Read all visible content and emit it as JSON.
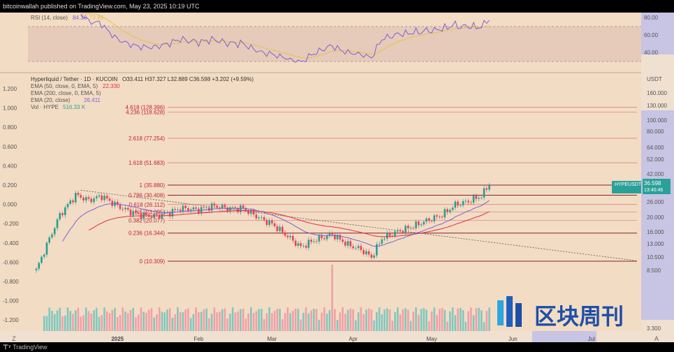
{
  "header": {
    "publish_text": "bitcoinwallah published on TradingView.com, May 23, 2025 10:19 UTC"
  },
  "footer": {
    "brand": "TradingView"
  },
  "rsi": {
    "title": "RSI (14, close)",
    "value": "84.36",
    "ma_value": "73.80",
    "ticks": [
      "80.00",
      "60.00",
      "40.00"
    ],
    "colors": {
      "rsi": "#7b5fd6",
      "ma": "#e8c04a",
      "band": "#d9b9b0"
    }
  },
  "main": {
    "title": "Hyperliquid / Tether · 1D · KUCOIN",
    "ohlc": "O33.411 H37.327 L32.889 C36.598 +3.202 (+9.59%)",
    "indicators": [
      {
        "label": "EMA (50, close, 0, EMA, 5)",
        "value": "22.330",
        "color": "#e03040"
      },
      {
        "label": "EMA (200, close, 0, EMA, 5)",
        "value": "",
        "color": "#e03040"
      },
      {
        "label": "EMA (20, close)",
        "value": "26.411",
        "color": "#7b5fd6"
      },
      {
        "label": "Vol · HYPE",
        "value": "516.33 K",
        "color": "#2aa198"
      }
    ],
    "currency": "USDT",
    "price_tag": {
      "symbol": "HYPEUSDT",
      "price": "36.598",
      "countdown": "13:40:46"
    }
  },
  "fib_levels": [
    {
      "label": "4.618 (128.396)",
      "price": 128.396
    },
    {
      "label": "4.236 (118.628)",
      "price": 118.628
    },
    {
      "label": "2.618 (77.254)",
      "price": 77.254
    },
    {
      "label": "1.618 (51.683)",
      "price": 51.683
    },
    {
      "label": "1 (35.880)",
      "price": 35.88
    },
    {
      "label": "0.786 (30.408)",
      "price": 30.408
    },
    {
      "label": "0.618 (26.112)",
      "price": 26.112
    },
    {
      "label": "0.5 (23.095)",
      "price": 23.095
    },
    {
      "label": "0.382 (20.077)",
      "price": 20.077
    },
    {
      "label": "0.236 (16.344)",
      "price": 16.344
    },
    {
      "label": "0 (10.309)",
      "price": 10.309
    }
  ],
  "left_axis_ticks": [
    "1.200",
    "1.000",
    "0.800",
    "0.600",
    "0.400",
    "0.200",
    "0.000",
    "-0.200",
    "-0.400",
    "-0.600",
    "-0.800",
    "-1.000",
    "-1.200"
  ],
  "right_axis_ticks": [
    "USDT",
    "160.000",
    "130.000",
    "100.000",
    "80.000",
    "64.000",
    "52.000",
    "42.000",
    "26.000",
    "20.000",
    "16.000",
    "13.000",
    "10.500",
    "8.500",
    "3.300"
  ],
  "x_ticks": [
    "2025",
    "Feb",
    "Mar",
    "Apr",
    "May",
    "Jun",
    "Jul"
  ],
  "watermark": "区块周刊",
  "chart_data": {
    "type": "candlestick",
    "title": "Hyperliquid / Tether · 1D · KUCOIN",
    "symbol": "HYPEUSDT",
    "scale": "log",
    "last": {
      "open": 33.411,
      "high": 37.327,
      "low": 32.889,
      "close": 36.598,
      "change": 3.202,
      "change_pct": 9.59
    },
    "candles": [
      {
        "t": "2024-12-01",
        "c": 8.9
      },
      {
        "t": "2024-12-05",
        "c": 13.5
      },
      {
        "t": "2024-12-10",
        "c": 22.0
      },
      {
        "t": "2024-12-16",
        "c": 30.5
      },
      {
        "t": "2024-12-21",
        "c": 28.0
      },
      {
        "t": "2024-12-26",
        "c": 30.0
      },
      {
        "t": "2025-01-01",
        "c": 25.5
      },
      {
        "t": "2025-01-05",
        "c": 23.5
      },
      {
        "t": "2025-01-10",
        "c": 22.0
      },
      {
        "t": "2025-01-15",
        "c": 21.5
      },
      {
        "t": "2025-01-20",
        "c": 22.5
      },
      {
        "t": "2025-01-25",
        "c": 24.5
      },
      {
        "t": "2025-02-01",
        "c": 24.0
      },
      {
        "t": "2025-02-07",
        "c": 25.5
      },
      {
        "t": "2025-02-12",
        "c": 24.5
      },
      {
        "t": "2025-02-18",
        "c": 24.5
      },
      {
        "t": "2025-02-24",
        "c": 21.0
      },
      {
        "t": "2025-03-01",
        "c": 19.0
      },
      {
        "t": "2025-03-07",
        "c": 15.5
      },
      {
        "t": "2025-03-12",
        "c": 13.0
      },
      {
        "t": "2025-03-17",
        "c": 14.5
      },
      {
        "t": "2025-03-24",
        "c": 16.0
      },
      {
        "t": "2025-03-30",
        "c": 13.5
      },
      {
        "t": "2025-04-04",
        "c": 12.5
      },
      {
        "t": "2025-04-08",
        "c": 11.0
      },
      {
        "t": "2025-04-12",
        "c": 15.0
      },
      {
        "t": "2025-04-17",
        "c": 16.5
      },
      {
        "t": "2025-04-23",
        "c": 18.0
      },
      {
        "t": "2025-04-29",
        "c": 20.0
      },
      {
        "t": "2025-05-05",
        "c": 22.0
      },
      {
        "t": "2025-05-10",
        "c": 26.0
      },
      {
        "t": "2025-05-15",
        "c": 27.5
      },
      {
        "t": "2025-05-20",
        "c": 30.0
      },
      {
        "t": "2025-05-23",
        "c": 36.598
      }
    ],
    "volume": [
      {
        "t": "2024-12-05",
        "v": 30
      },
      {
        "t": "2024-12-16",
        "v": 45
      },
      {
        "t": "2024-12-26",
        "v": 55
      },
      {
        "t": "2025-01-05",
        "v": 60
      },
      {
        "t": "2025-01-15",
        "v": 35
      },
      {
        "t": "2025-01-25",
        "v": 40
      },
      {
        "t": "2025-02-07",
        "v": 50
      },
      {
        "t": "2025-02-18",
        "v": 40
      },
      {
        "t": "2025-03-01",
        "v": 45
      },
      {
        "t": "2025-03-12",
        "v": 70
      },
      {
        "t": "2025-03-24",
        "v": 100
      },
      {
        "t": "2025-04-04",
        "v": 55
      },
      {
        "t": "2025-04-17",
        "v": 45
      },
      {
        "t": "2025-04-29",
        "v": 40
      },
      {
        "t": "2025-05-10",
        "v": 55
      },
      {
        "t": "2025-05-23",
        "v": 50
      }
    ]
  }
}
